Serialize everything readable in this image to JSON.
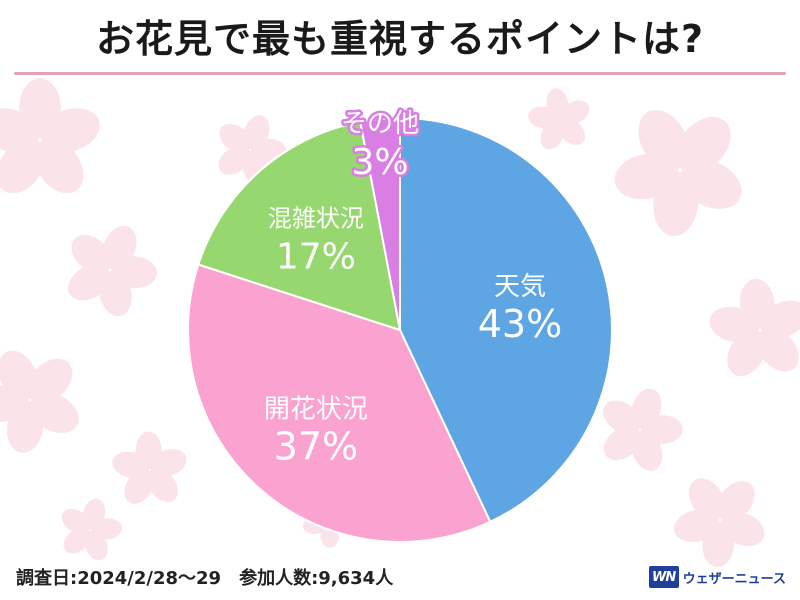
{
  "title": "お花見で最も重視するポイントは?",
  "survey_info": "調査日:2024/2/28〜29　参加人数:9,634人",
  "brand": {
    "mark": "WN",
    "name": "ウェザーニュース"
  },
  "colors": {
    "background_blossom": "#fbe3ea",
    "title_rule": "#e2a0bb"
  },
  "chart_data": {
    "type": "pie",
    "start": "top",
    "direction": "clockwise",
    "slices": [
      {
        "label": "天気",
        "value": 43,
        "display": "43%",
        "color": "#5ea5e3",
        "text_color": "#ffffff",
        "stroke_color": "#ffffff"
      },
      {
        "label": "開花状況",
        "value": 37,
        "display": "37%",
        "color": "#fba3d0",
        "text_color": "#ffffff",
        "stroke_color": "#ffffff"
      },
      {
        "label": "混雑状況",
        "value": 17,
        "display": "17%",
        "color": "#96d86f",
        "text_color": "#ffffff",
        "stroke_color": "#ffffff"
      },
      {
        "label": "その他",
        "value": 3,
        "display": "3%",
        "color": "#d97ee3",
        "text_color": "#ffffff",
        "stroke_color": "#d97ee3"
      }
    ]
  }
}
